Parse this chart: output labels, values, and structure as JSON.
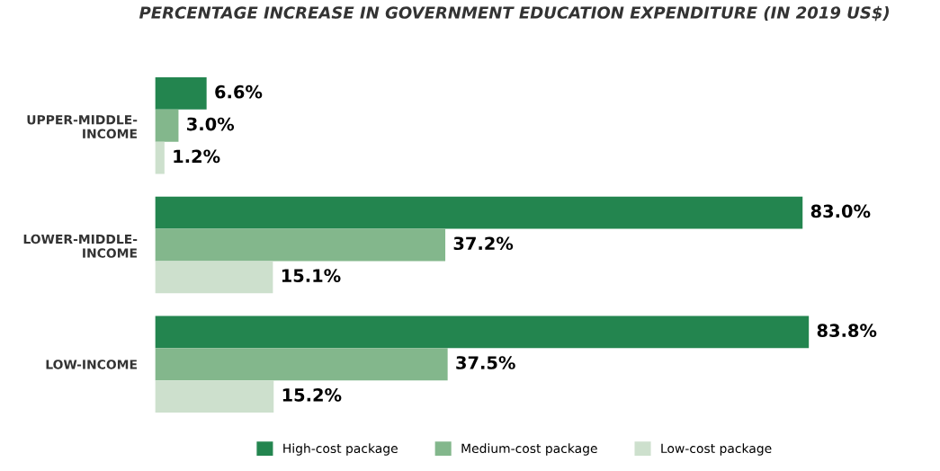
{
  "chart_data": {
    "type": "bar",
    "orientation": "horizontal",
    "title": "PERCENTAGE INCREASE IN GOVERNMENT EDUCATION EXPENDITURE (IN 2019 US$)",
    "categories": [
      "UPPER-MIDDLE-\nINCOME",
      "LOWER-MIDDLE-\nINCOME",
      "LOW-INCOME"
    ],
    "series": [
      {
        "name": "High-cost package",
        "color": "#23854f",
        "values": [
          6.6,
          83.0,
          83.8
        ],
        "value_labels": [
          "6.6%",
          "83.0%",
          "83.8%"
        ]
      },
      {
        "name": "Medium-cost package",
        "color": "#83b78c",
        "values": [
          3.0,
          37.2,
          37.5
        ],
        "value_labels": [
          "3.0%",
          "37.2%",
          "37.5%"
        ]
      },
      {
        "name": "Low-cost package",
        "color": "#cde0cd",
        "values": [
          1.2,
          15.1,
          15.2
        ],
        "value_labels": [
          "1.2%",
          "15.1%",
          "15.2%"
        ]
      }
    ],
    "legend": "bottom",
    "grid": false
  }
}
